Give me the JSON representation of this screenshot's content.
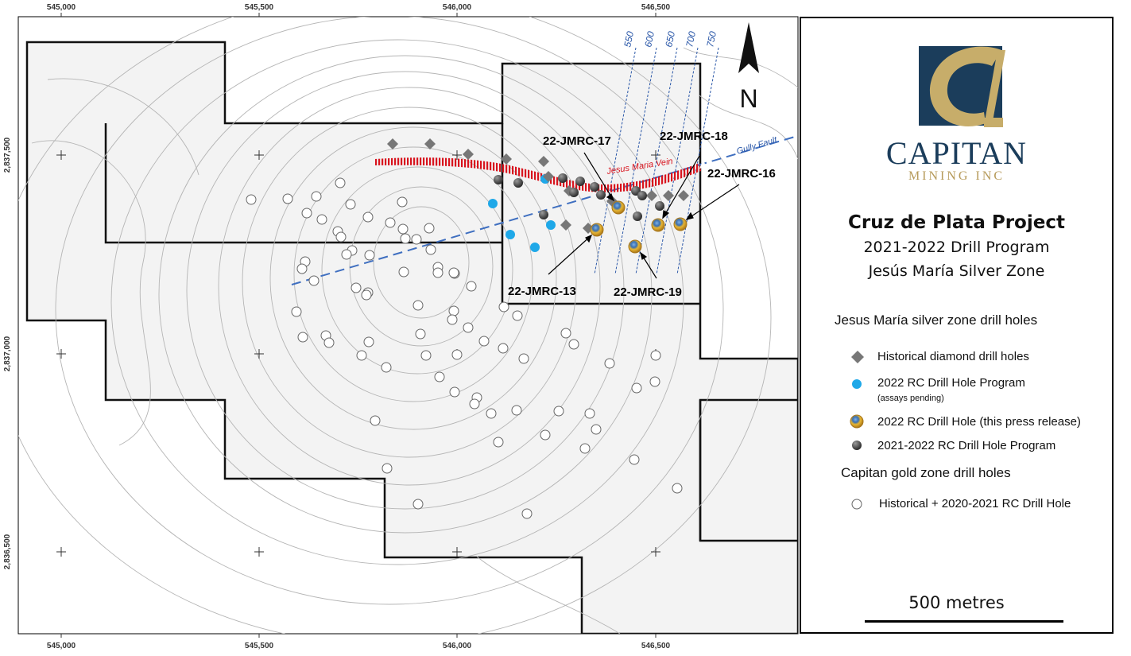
{
  "map": {
    "x_ticks": [
      "545,000",
      "545,500",
      "546,000",
      "546,500"
    ],
    "y_ticks": [
      "2,837,500",
      "2,837,000",
      "2,836,500"
    ],
    "north_label": "N",
    "section_lines": [
      "550",
      "600",
      "650",
      "700",
      "750"
    ],
    "vein_label": "Jesus Maria Vein",
    "fault_label": "Gully Fault",
    "hole_labels": {
      "h17": "22-JMRC-17",
      "h18": "22-JMRC-18",
      "h16": "22-JMRC-16",
      "h13": "22-JMRC-13",
      "h19": "22-JMRC-19"
    },
    "colors": {
      "claim_fill": "#f3f3f3",
      "vein": "#d8141e",
      "fault": "#3f6fc0",
      "section": "#2a57a8",
      "rc_2022": "#1fa8e8",
      "historical_diamond": "#777777"
    }
  },
  "legend": {
    "company_name": "CAPITAN",
    "company_sub": "MINING INC",
    "project_title": "Cruz de Plata Project",
    "program_title": "2021-2022 Drill Program",
    "zone_title": "Jesús María Silver Zone",
    "silver_heading": "Jesus María silver zone drill holes",
    "items": [
      {
        "label": "Historical diamond drill holes",
        "icon": "diamond-icon"
      },
      {
        "label": "2022 RC Drill Hole Program",
        "sub": "(assays pending)",
        "icon": "blue-dot-icon"
      },
      {
        "label": "2022 RC Drill Hole (this press release)",
        "icon": "gold-dot-icon"
      },
      {
        "label": "2021-2022 RC Drill Hole Program",
        "icon": "dark-sphere-icon"
      }
    ],
    "gold_heading": "Capitan gold zone drill holes",
    "gold_item": {
      "label": "Historical + 2020-2021 RC Drill Hole",
      "icon": "open-circle-icon"
    },
    "scale_label": "500 metres"
  }
}
